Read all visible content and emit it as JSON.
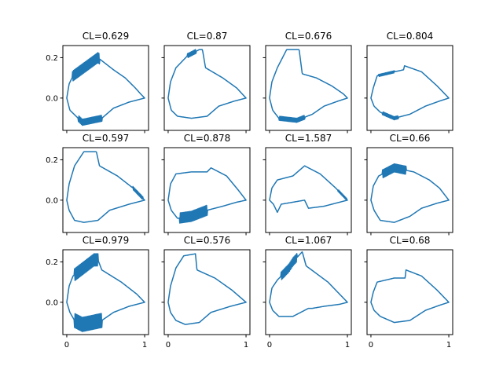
{
  "figure": {
    "line_color": "#1f77b4",
    "grid": false
  },
  "chart_data": [
    {
      "type": "line",
      "title": "CL=0.629",
      "xlim": [
        -0.05,
        1.05
      ],
      "ylim": [
        -0.16,
        0.26
      ],
      "x_ticks": [
        0,
        1
      ],
      "x_tick_labels": [
        "0",
        "1"
      ],
      "y_ticks": [
        0.0,
        0.2
      ],
      "y_tick_labels": [
        "0.0",
        "0.2"
      ],
      "shape": {
        "top": [
          [
            0.0,
            0.0
          ],
          [
            0.03,
            0.07
          ],
          [
            0.08,
            0.11
          ],
          [
            0.4,
            0.2
          ],
          [
            0.6,
            0.14
          ],
          [
            0.75,
            0.1
          ],
          [
            0.88,
            0.05
          ],
          [
            0.95,
            0.02
          ],
          [
            1.0,
            0.0
          ]
        ],
        "bottom": [
          [
            0.0,
            0.0
          ],
          [
            0.04,
            -0.06
          ],
          [
            0.12,
            -0.09
          ],
          [
            0.2,
            -0.12
          ],
          [
            0.45,
            -0.1
          ],
          [
            0.6,
            -0.05
          ],
          [
            0.8,
            -0.02
          ],
          [
            0.95,
            -0.005
          ],
          [
            1.0,
            0.0
          ]
        ],
        "serr_top": [
          0.07,
          0.42,
          0.05
        ],
        "serr_bottom": [
          0.15,
          0.45,
          0.03
        ]
      }
    },
    {
      "type": "line",
      "title": "CL=0.87",
      "xlim": [
        -0.05,
        1.05
      ],
      "ylim": [
        -0.16,
        0.26
      ],
      "x_ticks": [
        0,
        1
      ],
      "x_tick_labels": [
        "0",
        "1"
      ],
      "y_ticks": [
        0.0,
        0.2
      ],
      "y_tick_labels": [
        "0.0",
        "0.2"
      ],
      "shape": {
        "top": [
          [
            0.0,
            0.0
          ],
          [
            0.03,
            0.08
          ],
          [
            0.1,
            0.15
          ],
          [
            0.25,
            0.21
          ],
          [
            0.4,
            0.24
          ],
          [
            0.44,
            0.24
          ],
          [
            0.48,
            0.15
          ],
          [
            0.7,
            0.1
          ],
          [
            0.88,
            0.05
          ],
          [
            1.0,
            0.0
          ]
        ],
        "bottom": [
          [
            0.0,
            0.0
          ],
          [
            0.04,
            -0.06
          ],
          [
            0.12,
            -0.09
          ],
          [
            0.3,
            -0.1
          ],
          [
            0.5,
            -0.09
          ],
          [
            0.65,
            -0.04
          ],
          [
            0.85,
            -0.015
          ],
          [
            1.0,
            0.0
          ]
        ],
        "serr_top": [
          0.25,
          0.36,
          0.02
        ]
      }
    },
    {
      "type": "line",
      "title": "CL=0.676",
      "xlim": [
        -0.05,
        1.05
      ],
      "ylim": [
        -0.16,
        0.26
      ],
      "x_ticks": [
        0,
        1
      ],
      "x_tick_labels": [
        "0",
        "1"
      ],
      "y_ticks": [
        0.0,
        0.2
      ],
      "y_tick_labels": [
        "0.0",
        "0.2"
      ],
      "shape": {
        "top": [
          [
            0.0,
            0.0
          ],
          [
            0.03,
            0.08
          ],
          [
            0.1,
            0.15
          ],
          [
            0.22,
            0.24
          ],
          [
            0.38,
            0.24
          ],
          [
            0.42,
            0.12
          ],
          [
            0.6,
            0.1
          ],
          [
            0.8,
            0.06
          ],
          [
            0.95,
            0.02
          ],
          [
            1.0,
            0.0
          ]
        ],
        "bottom": [
          [
            0.0,
            0.0
          ],
          [
            0.04,
            -0.06
          ],
          [
            0.12,
            -0.1
          ],
          [
            0.35,
            -0.11
          ],
          [
            0.55,
            -0.08
          ],
          [
            0.7,
            -0.04
          ],
          [
            0.88,
            -0.015
          ],
          [
            1.0,
            0.0
          ]
        ],
        "serr_bottom": [
          0.12,
          0.45,
          0.02
        ]
      }
    },
    {
      "type": "line",
      "title": "CL=0.804",
      "xlim": [
        -0.05,
        1.05
      ],
      "ylim": [
        -0.16,
        0.26
      ],
      "x_ticks": [
        0,
        1
      ],
      "x_tick_labels": [
        "0",
        "1"
      ],
      "y_ticks": [
        0.0,
        0.2
      ],
      "y_tick_labels": [
        "0.0",
        "0.2"
      ],
      "shape": {
        "top": [
          [
            0.0,
            0.0
          ],
          [
            0.03,
            0.05
          ],
          [
            0.08,
            0.11
          ],
          [
            0.3,
            0.13
          ],
          [
            0.42,
            0.14
          ],
          [
            0.43,
            0.16
          ],
          [
            0.65,
            0.13
          ],
          [
            0.85,
            0.06
          ],
          [
            1.0,
            0.0
          ]
        ],
        "bottom": [
          [
            0.0,
            0.0
          ],
          [
            0.04,
            -0.04
          ],
          [
            0.12,
            -0.07
          ],
          [
            0.3,
            -0.1
          ],
          [
            0.5,
            -0.08
          ],
          [
            0.7,
            -0.04
          ],
          [
            0.88,
            -0.015
          ],
          [
            1.0,
            0.0
          ]
        ],
        "serr_top": [
          0.1,
          0.3,
          0.01
        ],
        "serr_bottom": [
          0.15,
          0.35,
          0.015
        ]
      }
    },
    {
      "type": "line",
      "title": "CL=0.597",
      "xlim": [
        -0.05,
        1.05
      ],
      "ylim": [
        -0.16,
        0.26
      ],
      "x_ticks": [
        0,
        1
      ],
      "x_tick_labels": [
        "0",
        "1"
      ],
      "y_ticks": [
        0.0,
        0.2
      ],
      "y_tick_labels": [
        "0.0",
        "0.2"
      ],
      "shape": {
        "top": [
          [
            0.0,
            0.0
          ],
          [
            0.03,
            0.08
          ],
          [
            0.1,
            0.17
          ],
          [
            0.22,
            0.24
          ],
          [
            0.38,
            0.24
          ],
          [
            0.42,
            0.17
          ],
          [
            0.65,
            0.12
          ],
          [
            0.85,
            0.06
          ],
          [
            1.0,
            0.0
          ]
        ],
        "bottom": [
          [
            0.0,
            0.0
          ],
          [
            0.03,
            -0.05
          ],
          [
            0.1,
            -0.1
          ],
          [
            0.22,
            -0.11
          ],
          [
            0.4,
            -0.1
          ],
          [
            0.55,
            -0.05
          ],
          [
            0.8,
            -0.02
          ],
          [
            1.0,
            0.0
          ]
        ],
        "serr_top": [
          0.85,
          0.98,
          0.015
        ]
      }
    },
    {
      "type": "line",
      "title": "CL=0.878",
      "xlim": [
        -0.05,
        1.05
      ],
      "ylim": [
        -0.16,
        0.26
      ],
      "x_ticks": [
        0,
        1
      ],
      "x_tick_labels": [
        "0",
        "1"
      ],
      "y_ticks": [
        0.0,
        0.2
      ],
      "y_tick_labels": [
        "0.0",
        "0.2"
      ],
      "shape": {
        "top": [
          [
            0.0,
            0.0
          ],
          [
            0.03,
            0.08
          ],
          [
            0.1,
            0.13
          ],
          [
            0.3,
            0.14
          ],
          [
            0.5,
            0.14
          ],
          [
            0.55,
            0.16
          ],
          [
            0.75,
            0.12
          ],
          [
            0.9,
            0.05
          ],
          [
            1.0,
            0.0
          ]
        ],
        "bottom": [
          [
            0.0,
            0.0
          ],
          [
            0.04,
            -0.05
          ],
          [
            0.12,
            -0.09
          ],
          [
            0.3,
            -0.08
          ],
          [
            0.5,
            -0.05
          ],
          [
            0.7,
            -0.03
          ],
          [
            0.88,
            -0.01
          ],
          [
            1.0,
            0.0
          ]
        ],
        "serr_bottom": [
          0.15,
          0.5,
          0.05
        ]
      }
    },
    {
      "type": "line",
      "title": "CL=1.587",
      "xlim": [
        -0.05,
        1.05
      ],
      "ylim": [
        -0.16,
        0.26
      ],
      "x_ticks": [
        0,
        1
      ],
      "x_tick_labels": [
        "0",
        "1"
      ],
      "y_ticks": [
        0.0,
        0.2
      ],
      "y_tick_labels": [
        "0.0",
        "0.2"
      ],
      "shape": {
        "top": [
          [
            0.0,
            0.0
          ],
          [
            0.03,
            0.06
          ],
          [
            0.1,
            0.1
          ],
          [
            0.3,
            0.12
          ],
          [
            0.45,
            0.17
          ],
          [
            0.65,
            0.13
          ],
          [
            0.85,
            0.06
          ],
          [
            1.0,
            0.0
          ]
        ],
        "bottom": [
          [
            0.0,
            0.0
          ],
          [
            0.05,
            -0.02
          ],
          [
            0.1,
            -0.06
          ],
          [
            0.15,
            -0.02
          ],
          [
            0.45,
            0.0
          ],
          [
            0.5,
            -0.04
          ],
          [
            0.7,
            -0.03
          ],
          [
            0.9,
            -0.01
          ],
          [
            1.0,
            0.0
          ]
        ],
        "serr_top": [
          0.88,
          0.99,
          0.01
        ]
      }
    },
    {
      "type": "line",
      "title": "CL=0.66",
      "xlim": [
        -0.05,
        1.05
      ],
      "ylim": [
        -0.16,
        0.26
      ],
      "x_ticks": [
        0,
        1
      ],
      "x_tick_labels": [
        "0",
        "1"
      ],
      "y_ticks": [
        0.0,
        0.2
      ],
      "y_tick_labels": [
        "0.0",
        "0.2"
      ],
      "shape": {
        "top": [
          [
            0.0,
            0.0
          ],
          [
            0.03,
            0.07
          ],
          [
            0.1,
            0.12
          ],
          [
            0.3,
            0.16
          ],
          [
            0.55,
            0.14
          ],
          [
            0.75,
            0.1
          ],
          [
            0.88,
            0.06
          ],
          [
            1.0,
            0.0
          ]
        ],
        "bottom": [
          [
            0.0,
            0.0
          ],
          [
            0.04,
            -0.05
          ],
          [
            0.12,
            -0.1
          ],
          [
            0.3,
            -0.11
          ],
          [
            0.5,
            -0.08
          ],
          [
            0.65,
            -0.04
          ],
          [
            0.85,
            -0.015
          ],
          [
            1.0,
            0.0
          ]
        ],
        "serr_top": [
          0.15,
          0.45,
          0.04
        ]
      }
    },
    {
      "type": "line",
      "title": "CL=0.979",
      "xlim": [
        -0.05,
        1.05
      ],
      "ylim": [
        -0.16,
        0.26
      ],
      "x_ticks": [
        0,
        1
      ],
      "x_tick_labels": [
        "0",
        "1"
      ],
      "y_ticks": [
        0.0,
        0.2
      ],
      "y_tick_labels": [
        "0.0",
        "0.2"
      ],
      "shape": {
        "top": [
          [
            0.0,
            0.0
          ],
          [
            0.03,
            0.08
          ],
          [
            0.08,
            0.13
          ],
          [
            0.35,
            0.21
          ],
          [
            0.4,
            0.21
          ],
          [
            0.45,
            0.16
          ],
          [
            0.7,
            0.1
          ],
          [
            0.9,
            0.04
          ],
          [
            1.0,
            0.0
          ]
        ],
        "bottom": [
          [
            0.0,
            0.0
          ],
          [
            0.04,
            -0.05
          ],
          [
            0.1,
            -0.09
          ],
          [
            0.2,
            -0.11
          ],
          [
            0.45,
            -0.09
          ],
          [
            0.6,
            -0.05
          ],
          [
            0.8,
            -0.02
          ],
          [
            1.0,
            0.0
          ]
        ],
        "serr_top": [
          0.1,
          0.4,
          0.06
        ],
        "serr_bottom": [
          0.1,
          0.45,
          0.07
        ]
      }
    },
    {
      "type": "line",
      "title": "CL=0.576",
      "xlim": [
        -0.05,
        1.05
      ],
      "ylim": [
        -0.16,
        0.26
      ],
      "x_ticks": [
        0,
        1
      ],
      "x_tick_labels": [
        "0",
        "1"
      ],
      "y_ticks": [
        0.0,
        0.2
      ],
      "y_tick_labels": [
        "0.0",
        "0.2"
      ],
      "shape": {
        "top": [
          [
            0.0,
            0.0
          ],
          [
            0.03,
            0.08
          ],
          [
            0.1,
            0.17
          ],
          [
            0.2,
            0.23
          ],
          [
            0.35,
            0.24
          ],
          [
            0.37,
            0.16
          ],
          [
            0.6,
            0.12
          ],
          [
            0.82,
            0.06
          ],
          [
            1.0,
            0.0
          ]
        ],
        "bottom": [
          [
            0.0,
            0.0
          ],
          [
            0.03,
            -0.05
          ],
          [
            0.1,
            -0.09
          ],
          [
            0.22,
            -0.11
          ],
          [
            0.4,
            -0.1
          ],
          [
            0.55,
            -0.05
          ],
          [
            0.8,
            -0.02
          ],
          [
            1.0,
            0.0
          ]
        ]
      }
    },
    {
      "type": "line",
      "title": "CL=1.067",
      "xlim": [
        -0.05,
        1.05
      ],
      "ylim": [
        -0.16,
        0.26
      ],
      "x_ticks": [
        0,
        1
      ],
      "x_tick_labels": [
        "0",
        "1"
      ],
      "y_ticks": [
        0.0,
        0.2
      ],
      "y_tick_labels": [
        "0.0",
        "0.2"
      ],
      "shape": {
        "top": [
          [
            0.0,
            0.0
          ],
          [
            0.03,
            0.07
          ],
          [
            0.1,
            0.11
          ],
          [
            0.25,
            0.17
          ],
          [
            0.3,
            0.2
          ],
          [
            0.42,
            0.25
          ],
          [
            0.47,
            0.18
          ],
          [
            0.75,
            0.1
          ],
          [
            0.9,
            0.04
          ],
          [
            1.0,
            0.0
          ]
        ],
        "bottom": [
          [
            0.0,
            0.0
          ],
          [
            0.04,
            -0.04
          ],
          [
            0.12,
            -0.07
          ],
          [
            0.3,
            -0.07
          ],
          [
            0.5,
            -0.03
          ],
          [
            0.55,
            -0.03
          ],
          [
            0.7,
            -0.02
          ],
          [
            0.9,
            -0.01
          ],
          [
            1.0,
            0.0
          ]
        ],
        "serr_top": [
          0.15,
          0.35,
          0.04
        ]
      }
    },
    {
      "type": "line",
      "title": "CL=0.68",
      "xlim": [
        -0.05,
        1.05
      ],
      "ylim": [
        -0.16,
        0.26
      ],
      "x_ticks": [
        0,
        1
      ],
      "x_tick_labels": [
        "0",
        "1"
      ],
      "y_ticks": [
        0.0,
        0.2
      ],
      "y_tick_labels": [
        "0.0",
        "0.2"
      ],
      "shape": {
        "top": [
          [
            0.0,
            0.0
          ],
          [
            0.03,
            0.05
          ],
          [
            0.08,
            0.1
          ],
          [
            0.3,
            0.12
          ],
          [
            0.44,
            0.12
          ],
          [
            0.45,
            0.16
          ],
          [
            0.65,
            0.13
          ],
          [
            0.85,
            0.06
          ],
          [
            1.0,
            0.0
          ]
        ],
        "bottom": [
          [
            0.0,
            0.0
          ],
          [
            0.04,
            -0.04
          ],
          [
            0.12,
            -0.07
          ],
          [
            0.3,
            -0.1
          ],
          [
            0.5,
            -0.09
          ],
          [
            0.7,
            -0.04
          ],
          [
            0.88,
            -0.015
          ],
          [
            1.0,
            0.0
          ]
        ]
      }
    }
  ]
}
